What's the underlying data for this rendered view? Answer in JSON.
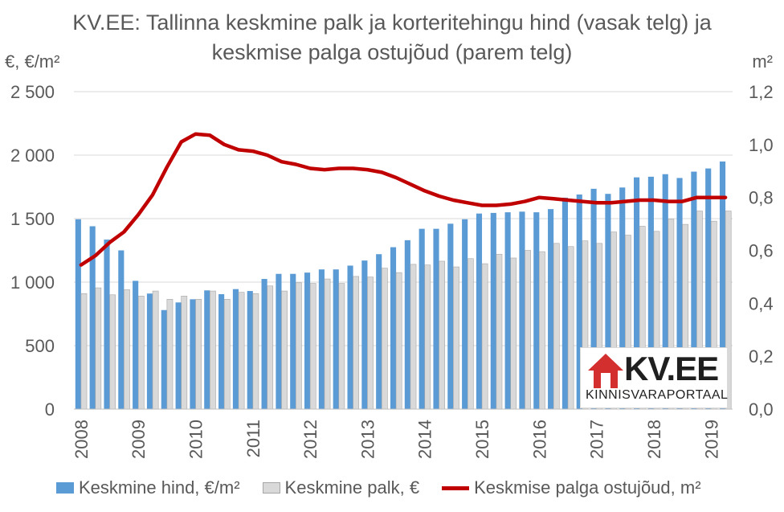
{
  "title": "KV.EE: Tallinna keskmine palk ja korteritehingu hind (vasak telg) ja keskmise palga ostujõud (parem telg)",
  "left_unit": "€, €/m²",
  "right_unit": "m²",
  "logo": {
    "text": "KV.EE",
    "sub": "KINNISVARAPORTAAL"
  },
  "colors": {
    "price": "#5b9bd5",
    "wage": "#d9d9d9",
    "line": "#c00000",
    "grid": "#d9d9d9",
    "text": "#595959"
  },
  "legend": [
    {
      "label": "Keskmine hind, €/m²",
      "type": "bar",
      "color": "#5b9bd5"
    },
    {
      "label": "Keskmine palk, €",
      "type": "bar",
      "color": "#d9d9d9"
    },
    {
      "label": "Keskmise palga ostujõud, m²",
      "type": "line",
      "color": "#c00000"
    }
  ],
  "chart_data": {
    "type": "bar",
    "title": "KV.EE: Tallinna keskmine palk ja korteritehingu hind (vasak telg) ja keskmise palga ostujõud (parem telg)",
    "ylabel": "€, €/m²",
    "y2label": "m²",
    "ylim": [
      0,
      2500
    ],
    "y2lim": [
      0,
      1.2
    ],
    "yticks": [
      "0",
      "500",
      "1 000",
      "1 500",
      "2 000",
      "2 500"
    ],
    "y2ticks": [
      "0,0",
      "0,2",
      "0,4",
      "0,6",
      "0,8",
      "1,0",
      "1,2"
    ],
    "xticks": [
      "2008",
      "2009",
      "2010",
      "2011",
      "2012",
      "2013",
      "2014",
      "2015",
      "2016",
      "2017",
      "2018",
      "2019"
    ],
    "grid": true,
    "legend_position": "bottom",
    "x": [
      "2008 Q1",
      "2008 Q2",
      "2008 Q3",
      "2008 Q4",
      "2009 Q1",
      "2009 Q2",
      "2009 Q3",
      "2009 Q4",
      "2010 Q1",
      "2010 Q2",
      "2010 Q3",
      "2010 Q4",
      "2011 Q1",
      "2011 Q2",
      "2011 Q3",
      "2011 Q4",
      "2012 Q1",
      "2012 Q2",
      "2012 Q3",
      "2012 Q4",
      "2013 Q1",
      "2013 Q2",
      "2013 Q3",
      "2013 Q4",
      "2014 Q1",
      "2014 Q2",
      "2014 Q3",
      "2014 Q4",
      "2015 Q1",
      "2015 Q2",
      "2015 Q3",
      "2015 Q4",
      "2016 Q1",
      "2016 Q2",
      "2016 Q3",
      "2016 Q4",
      "2017 Q1",
      "2017 Q2",
      "2017 Q3",
      "2017 Q4",
      "2018 Q1",
      "2018 Q2",
      "2018 Q3",
      "2018 Q4",
      "2019 Q1",
      "2019 Q2"
    ],
    "series": [
      {
        "name": "Keskmine hind, €/m²",
        "type": "bar",
        "axis": "left",
        "values": [
          1495,
          1440,
          1335,
          1250,
          1010,
          910,
          780,
          840,
          865,
          935,
          905,
          945,
          930,
          1025,
          1065,
          1065,
          1075,
          1100,
          1100,
          1130,
          1170,
          1220,
          1275,
          1330,
          1420,
          1420,
          1460,
          1495,
          1540,
          1545,
          1550,
          1555,
          1550,
          1575,
          1665,
          1690,
          1735,
          1695,
          1745,
          1825,
          1830,
          1850,
          1820,
          1870,
          1895,
          1950
        ]
      },
      {
        "name": "Keskmine palk, €",
        "type": "bar",
        "axis": "left",
        "values": [
          910,
          955,
          900,
          940,
          890,
          930,
          865,
          890,
          865,
          930,
          865,
          920,
          910,
          970,
          930,
          995,
          990,
          1025,
          990,
          1045,
          1040,
          1110,
          1075,
          1140,
          1135,
          1165,
          1120,
          1185,
          1145,
          1220,
          1190,
          1250,
          1240,
          1305,
          1280,
          1325,
          1305,
          1395,
          1370,
          1440,
          1400,
          1495,
          1455,
          1560,
          1480,
          1560
        ]
      },
      {
        "name": "Keskmise palga ostujõud, m²",
        "type": "line",
        "axis": "right",
        "values": [
          0.545,
          0.58,
          0.63,
          0.67,
          0.735,
          0.81,
          0.915,
          1.01,
          1.04,
          1.035,
          1.0,
          0.98,
          0.975,
          0.96,
          0.935,
          0.925,
          0.91,
          0.905,
          0.91,
          0.91,
          0.905,
          0.895,
          0.875,
          0.85,
          0.825,
          0.805,
          0.79,
          0.78,
          0.77,
          0.77,
          0.775,
          0.785,
          0.8,
          0.795,
          0.79,
          0.785,
          0.78,
          0.78,
          0.785,
          0.79,
          0.79,
          0.785,
          0.785,
          0.8,
          0.8,
          0.8
        ]
      }
    ]
  }
}
